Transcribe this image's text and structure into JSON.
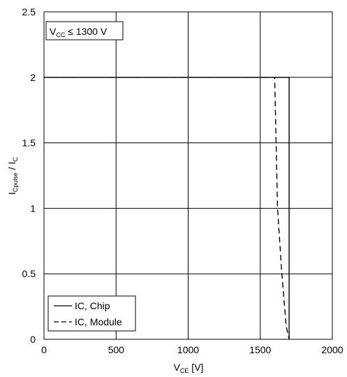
{
  "chart_data": {
    "type": "line",
    "xlabel": {
      "main": "V",
      "sub": "CE",
      "unit": " [V]"
    },
    "ylabel": {
      "main": "I",
      "sub1": "Cpulse",
      "mid": " / I",
      "sub2": "C"
    },
    "xlim": [
      0,
      2000
    ],
    "ylim": [
      0,
      2.5
    ],
    "xticks": [
      0,
      500,
      1000,
      1500,
      2000
    ],
    "yticks": [
      0,
      0.5,
      1,
      1.5,
      2,
      2.5
    ],
    "xtick_labels": [
      "0",
      "500",
      "1000",
      "1500",
      "2000"
    ],
    "ytick_labels": [
      "0",
      "0.5",
      "1",
      "1.5",
      "2",
      "2.5"
    ],
    "grid": true,
    "annotation": {
      "main": "V",
      "sub": "CC",
      "rest": " ≤ 1300 V"
    },
    "legend_position": "bottom-left",
    "series": [
      {
        "name": "IC, Chip",
        "style": "solid",
        "color": "#000000",
        "points": [
          [
            0,
            2
          ],
          [
            1700,
            2
          ],
          [
            1700,
            0
          ]
        ]
      },
      {
        "name": "IC, Module",
        "style": "dashed",
        "color": "#000000",
        "points": [
          [
            0,
            2
          ],
          [
            1600,
            2
          ],
          [
            1620,
            1.0
          ],
          [
            1650,
            0.5
          ],
          [
            1680,
            0.1
          ],
          [
            1700,
            0
          ]
        ]
      }
    ]
  }
}
